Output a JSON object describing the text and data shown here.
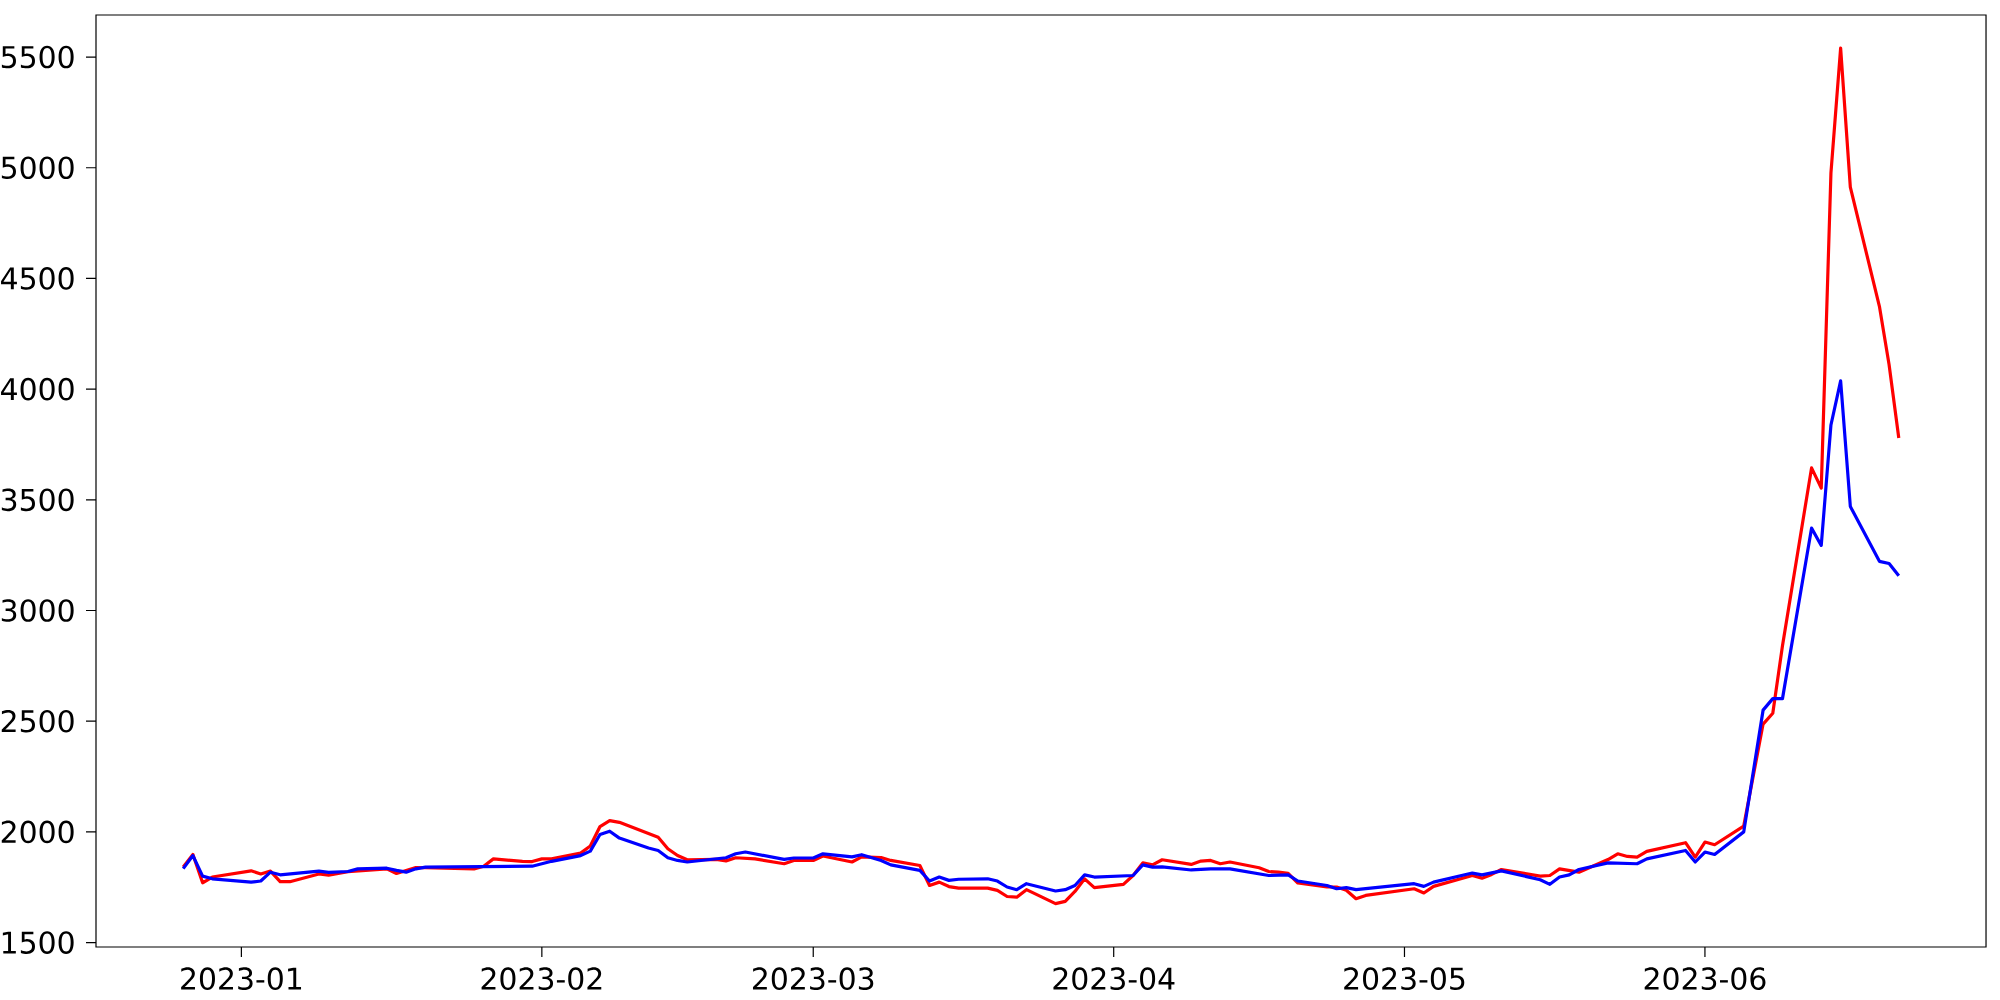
{
  "chart_data": {
    "type": "line",
    "xlim": [
      "2022-12-17",
      "2023-06-30"
    ],
    "ylim": [
      1480,
      5690
    ],
    "xticks": [
      {
        "value": "2023-01",
        "label": "2023-01"
      },
      {
        "value": "2023-02",
        "label": "2023-02"
      },
      {
        "value": "2023-03",
        "label": "2023-03"
      },
      {
        "value": "2023-04",
        "label": "2023-04"
      },
      {
        "value": "2023-05",
        "label": "2023-05"
      },
      {
        "value": "2023-06",
        "label": "2023-06"
      }
    ],
    "yticks": [
      1500,
      2000,
      2500,
      3000,
      3500,
      4000,
      4500,
      5000,
      5500
    ],
    "series": [
      {
        "color": "#ff0000",
        "x": [
          "2022-12-26",
          "2022-12-27",
          "2022-12-28",
          "2022-12-29",
          "2023-01-02",
          "2023-01-03",
          "2023-01-04",
          "2023-01-05",
          "2023-01-06",
          "2023-01-09",
          "2023-01-10",
          "2023-01-12",
          "2023-01-13",
          "2023-01-16",
          "2023-01-17",
          "2023-01-18",
          "2023-01-19",
          "2023-01-25",
          "2023-01-26",
          "2023-01-27",
          "2023-01-30",
          "2023-01-31",
          "2023-02-01",
          "2023-02-02",
          "2023-02-05",
          "2023-02-06",
          "2023-02-07",
          "2023-02-08",
          "2023-02-09",
          "2023-02-13",
          "2023-02-14",
          "2023-02-15",
          "2023-02-16",
          "2023-02-19",
          "2023-02-20",
          "2023-02-21",
          "2023-02-23",
          "2023-02-26",
          "2023-02-27",
          "2023-03-01",
          "2023-03-02",
          "2023-03-05",
          "2023-03-06",
          "2023-03-08",
          "2023-03-09",
          "2023-03-12",
          "2023-03-13",
          "2023-03-14",
          "2023-03-15",
          "2023-03-16",
          "2023-03-19",
          "2023-03-20",
          "2023-03-21",
          "2023-03-22",
          "2023-03-23",
          "2023-03-26",
          "2023-03-27",
          "2023-03-28",
          "2023-03-29",
          "2023-03-30",
          "2023-04-02",
          "2023-04-03",
          "2023-04-04",
          "2023-04-05",
          "2023-04-06",
          "2023-04-09",
          "2023-04-10",
          "2023-04-11",
          "2023-04-12",
          "2023-04-13",
          "2023-04-16",
          "2023-04-17",
          "2023-04-18",
          "2023-04-19",
          "2023-04-20",
          "2023-04-23",
          "2023-04-24",
          "2023-04-25",
          "2023-04-26",
          "2023-04-27",
          "2023-05-02",
          "2023-05-03",
          "2023-05-04",
          "2023-05-08",
          "2023-05-09",
          "2023-05-10",
          "2023-05-11",
          "2023-05-15",
          "2023-05-16",
          "2023-05-17",
          "2023-05-19",
          "2023-05-22",
          "2023-05-23",
          "2023-05-24",
          "2023-05-25",
          "2023-05-26",
          "2023-05-30",
          "2023-05-31",
          "2023-06-01",
          "2023-06-02",
          "2023-06-05",
          "2023-06-07",
          "2023-06-08",
          "2023-06-09",
          "2023-06-12",
          "2023-06-13",
          "2023-06-14",
          "2023-06-15",
          "2023-06-16",
          "2023-06-19",
          "2023-06-20",
          "2023-06-21"
        ],
        "values": [
          1841,
          1898,
          1770,
          1796,
          1824,
          1810,
          1823,
          1775,
          1775,
          1810,
          1805,
          1820,
          null,
          1833,
          1812,
          1826,
          1839,
          1833,
          1845,
          1878,
          1867,
          1866,
          1878,
          1878,
          1904,
          1936,
          2024,
          2051,
          2043,
          1976,
          1924,
          1893,
          1874,
          1876,
          1869,
          1883,
          1878,
          1856,
          1871,
          1871,
          1891,
          1864,
          1887,
          1884,
          1871,
          1848,
          1758,
          1773,
          1753,
          1746,
          1746,
          1736,
          1708,
          1705,
          1739,
          1676,
          1686,
          1731,
          1788,
          1748,
          1763,
          1803,
          1860,
          1851,
          1874,
          1853,
          1868,
          1871,
          1856,
          1864,
          1838,
          1821,
          1818,
          1813,
          1769,
          1751,
          1751,
          1736,
          1698,
          1713,
          1743,
          1724,
          1754,
          1803,
          1791,
          1808,
          1830,
          1800,
          1803,
          1833,
          1818,
          1875,
          1901,
          1889,
          1886,
          1912,
          1951,
          1886,
          1954,
          1942,
          2026,
          2487,
          2536,
          2841,
          3644,
          3553,
          4977,
          5540,
          4912,
          4374,
          4110,
          3779
        ]
      },
      {
        "color": "#0000ff",
        "x": [
          "2022-12-26",
          "2022-12-27",
          "2022-12-28",
          "2022-12-29",
          "2023-01-02",
          "2023-01-03",
          "2023-01-04",
          "2023-01-05",
          "2023-01-09",
          "2023-01-10",
          "2023-01-12",
          "2023-01-13",
          "2023-01-16",
          "2023-01-17",
          "2023-01-18",
          "2023-01-19",
          "2023-01-20",
          "2023-01-31",
          "2023-02-02",
          "2023-02-05",
          "2023-02-06",
          "2023-02-07",
          "2023-02-08",
          "2023-02-09",
          "2023-02-12",
          "2023-02-13",
          "2023-02-14",
          "2023-02-15",
          "2023-02-16",
          "2023-02-20",
          "2023-02-21",
          "2023-02-22",
          "2023-02-26",
          "2023-02-27",
          "2023-03-01",
          "2023-03-02",
          "2023-03-05",
          "2023-03-06",
          "2023-03-08",
          "2023-03-09",
          "2023-03-12",
          "2023-03-13",
          "2023-03-14",
          "2023-03-15",
          "2023-03-16",
          "2023-03-19",
          "2023-03-20",
          "2023-03-21",
          "2023-03-22",
          "2023-03-23",
          "2023-03-26",
          "2023-03-27",
          "2023-03-28",
          "2023-03-29",
          "2023-03-30",
          "2023-04-03",
          "2023-04-04",
          "2023-04-05",
          "2023-04-06",
          "2023-04-09",
          "2023-04-11",
          "2023-04-13",
          "2023-04-17",
          "2023-04-19",
          "2023-04-20",
          "2023-04-23",
          "2023-04-24",
          "2023-04-25",
          "2023-04-26",
          "2023-05-02",
          "2023-05-03",
          "2023-05-04",
          "2023-05-08",
          "2023-05-09",
          "2023-05-11",
          "2023-05-15",
          "2023-05-16",
          "2023-05-17",
          "2023-05-18",
          "2023-05-19",
          "2023-05-22",
          "2023-05-25",
          "2023-05-26",
          "2023-05-30",
          "2023-05-31",
          "2023-06-01",
          "2023-06-02",
          "2023-06-05",
          "2023-06-07",
          "2023-06-08",
          "2023-06-09",
          "2023-06-12",
          "2023-06-13",
          "2023-06-14",
          "2023-06-15",
          "2023-06-16",
          "2023-06-19",
          "2023-06-20",
          "2023-06-21"
        ],
        "values": [
          1834,
          1893,
          1800,
          1788,
          1773,
          1778,
          1818,
          1806,
          1823,
          1817,
          1821,
          1833,
          1836,
          1826,
          1818,
          1833,
          1841,
          1845,
          1867,
          1893,
          1913,
          1988,
          2003,
          1972,
          1927,
          1916,
          1883,
          1871,
          1864,
          1883,
          1901,
          1909,
          1876,
          1882,
          1882,
          1901,
          1887,
          1897,
          1871,
          1851,
          1826,
          1778,
          1796,
          1781,
          1786,
          1788,
          1778,
          1751,
          1739,
          1766,
          1733,
          1739,
          1758,
          1806,
          1796,
          1803,
          1851,
          1841,
          1842,
          1828,
          1833,
          1833,
          1803,
          1806,
          1778,
          1758,
          1743,
          1748,
          1739,
          1766,
          1754,
          1773,
          1814,
          1806,
          1824,
          1784,
          1763,
          1796,
          1806,
          1830,
          1860,
          1856,
          1878,
          1916,
          1864,
          1909,
          1898,
          2000,
          2550,
          2602,
          2602,
          3372,
          3294,
          3838,
          4037,
          3470,
          3222,
          3212,
          3157
        ]
      }
    ]
  }
}
